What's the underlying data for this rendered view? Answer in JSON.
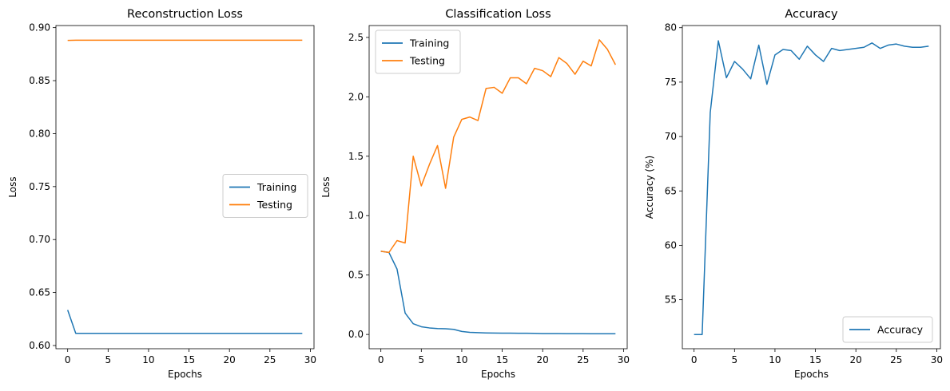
{
  "chart_data": [
    {
      "type": "line",
      "title": "Reconstruction Loss",
      "xlabel": "Epochs",
      "ylabel": "Loss",
      "xlim": [
        -1.45,
        30.45
      ],
      "ylim": [
        0.597,
        0.902
      ],
      "xticks": [
        0,
        5,
        10,
        15,
        20,
        25,
        30
      ],
      "yticks": [
        0.6,
        0.65,
        0.7,
        0.75,
        0.8,
        0.85,
        0.9
      ],
      "ytick_decimals": 2,
      "legend_position": "center-right",
      "x": [
        0,
        1,
        2,
        3,
        4,
        5,
        6,
        7,
        8,
        9,
        10,
        11,
        12,
        13,
        14,
        15,
        16,
        17,
        18,
        19,
        20,
        21,
        22,
        23,
        24,
        25,
        26,
        27,
        28,
        29
      ],
      "series": [
        {
          "name": "Training",
          "color": "#1f77b4",
          "values": [
            0.6335,
            0.6115,
            0.6115,
            0.6115,
            0.6115,
            0.6115,
            0.6115,
            0.6115,
            0.6115,
            0.6115,
            0.6115,
            0.6115,
            0.6115,
            0.6115,
            0.6115,
            0.6115,
            0.6115,
            0.6115,
            0.6115,
            0.6115,
            0.6115,
            0.6115,
            0.6115,
            0.6115,
            0.6115,
            0.6115,
            0.6115,
            0.6115,
            0.6115,
            0.6115
          ]
        },
        {
          "name": "Testing",
          "color": "#ff7f0e",
          "values": [
            0.888,
            0.8882,
            0.8882,
            0.8882,
            0.8882,
            0.8882,
            0.8882,
            0.8882,
            0.8882,
            0.8882,
            0.8882,
            0.8882,
            0.8882,
            0.8882,
            0.8882,
            0.8882,
            0.8882,
            0.8882,
            0.8882,
            0.8882,
            0.8882,
            0.8882,
            0.8882,
            0.8882,
            0.8882,
            0.8882,
            0.8882,
            0.8882,
            0.8882,
            0.8882
          ]
        }
      ]
    },
    {
      "type": "line",
      "title": "Classification Loss",
      "xlabel": "Epochs",
      "ylabel": "Loss",
      "xlim": [
        -1.45,
        30.45
      ],
      "ylim": [
        -0.12,
        2.6
      ],
      "xticks": [
        0,
        5,
        10,
        15,
        20,
        25,
        30
      ],
      "yticks": [
        0.0,
        0.5,
        1.0,
        1.5,
        2.0,
        2.5
      ],
      "ytick_decimals": 1,
      "legend_position": "top-left",
      "x": [
        0,
        1,
        2,
        3,
        4,
        5,
        6,
        7,
        8,
        9,
        10,
        11,
        12,
        13,
        14,
        15,
        16,
        17,
        18,
        19,
        20,
        21,
        22,
        23,
        24,
        25,
        26,
        27,
        28,
        29
      ],
      "series": [
        {
          "name": "Training",
          "color": "#1f77b4",
          "values": [
            0.7,
            0.69,
            0.55,
            0.18,
            0.09,
            0.065,
            0.055,
            0.05,
            0.048,
            0.043,
            0.025,
            0.018,
            0.015,
            0.013,
            0.012,
            0.011,
            0.011,
            0.01,
            0.01,
            0.009,
            0.008,
            0.008,
            0.008,
            0.007,
            0.007,
            0.007,
            0.006,
            0.006,
            0.006,
            0.006
          ]
        },
        {
          "name": "Testing",
          "color": "#ff7f0e",
          "values": [
            0.7,
            0.69,
            0.79,
            0.77,
            1.5,
            1.25,
            1.43,
            1.59,
            1.23,
            1.66,
            1.81,
            1.83,
            1.8,
            2.07,
            2.08,
            2.03,
            2.16,
            2.16,
            2.11,
            2.24,
            2.22,
            2.17,
            2.33,
            2.28,
            2.19,
            2.3,
            2.26,
            2.48,
            2.4,
            2.27
          ]
        }
      ]
    },
    {
      "type": "line",
      "title": "Accuracy",
      "xlabel": "Epochs",
      "ylabel": "Accuracy (%)",
      "xlim": [
        -1.45,
        30.45
      ],
      "ylim": [
        50.5,
        80.2
      ],
      "xticks": [
        0,
        5,
        10,
        15,
        20,
        25,
        30
      ],
      "yticks": [
        55,
        60,
        65,
        70,
        75,
        80
      ],
      "ytick_decimals": 0,
      "legend_position": "bottom-right",
      "x": [
        0,
        1,
        2,
        3,
        4,
        5,
        6,
        7,
        8,
        9,
        10,
        11,
        12,
        13,
        14,
        15,
        16,
        17,
        18,
        19,
        20,
        21,
        22,
        23,
        24,
        25,
        26,
        27,
        28,
        29
      ],
      "series": [
        {
          "name": "Accuracy",
          "color": "#1f77b4",
          "values": [
            51.8,
            51.8,
            72.2,
            78.8,
            75.4,
            76.9,
            76.2,
            75.3,
            78.4,
            74.8,
            77.5,
            78.0,
            77.9,
            77.1,
            78.3,
            77.5,
            76.9,
            78.1,
            77.9,
            78.0,
            78.1,
            78.2,
            78.6,
            78.1,
            78.4,
            78.5,
            78.3,
            78.2,
            78.2,
            78.3
          ]
        }
      ]
    }
  ]
}
